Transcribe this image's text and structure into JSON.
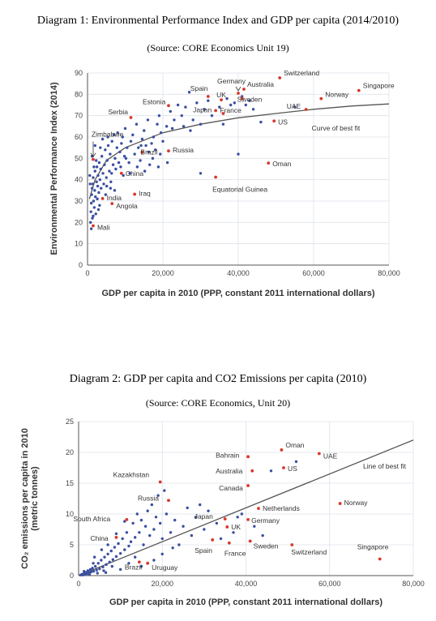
{
  "caption1": {
    "title": "Diagram 1: Environmental Performance Index and GDP per capita (2014/2010)",
    "source": "(Source: CORE Economics Unit 19)"
  },
  "caption2": {
    "title": "Diagram 2: GDP per capita and CO2 Emissions per capita (2010)",
    "source": "(Source: CORE Economics, Unit 20)"
  },
  "chart_data": [
    {
      "type": "scatter",
      "title": "Diagram 1: Environmental Performance Index and GDP per capita (2014/2010)",
      "xlabel": "GDP per capita in 2010 (PPP, constant 2011 international dollars)",
      "ylabel": "Environmental Performance Index (2014)",
      "xlim": [
        0,
        80000
      ],
      "ylim": [
        0,
        90
      ],
      "xticks": [
        0,
        20000,
        40000,
        60000,
        80000
      ],
      "xtick_labels": [
        "0",
        "20,000",
        "40,000",
        "60,000",
        "80,000"
      ],
      "yticks": [
        0,
        10,
        20,
        30,
        40,
        50,
        60,
        70,
        80,
        90
      ],
      "grid": true,
      "colors": {
        "points": "#3a4fa0",
        "highlight": "#d9372a",
        "curve": "#555555"
      },
      "fit_label": "Curve of best fit",
      "fit_curve": {
        "type": "log",
        "x": [
          500,
          2000,
          5000,
          10000,
          20000,
          30000,
          40000,
          50000,
          60000,
          70000,
          80000
        ],
        "y": [
          31,
          40,
          49,
          55,
          62,
          66,
          69,
          71,
          73,
          74.5,
          75.5
        ]
      },
      "labeled_points": [
        {
          "name": "Switzerland",
          "x": 51000,
          "y": 87.7
        },
        {
          "name": "Germany",
          "x": 40000,
          "y": 80.5
        },
        {
          "name": "Spain",
          "x": 32000,
          "y": 79
        },
        {
          "name": "Australia",
          "x": 41500,
          "y": 82.4
        },
        {
          "name": "Singapore",
          "x": 72000,
          "y": 81.8
        },
        {
          "name": "UK",
          "x": 35500,
          "y": 77.4
        },
        {
          "name": "Sweden",
          "x": 41000,
          "y": 78.1
        },
        {
          "name": "Japan",
          "x": 34000,
          "y": 72.4
        },
        {
          "name": "France",
          "x": 36000,
          "y": 71
        },
        {
          "name": "Norway",
          "x": 62000,
          "y": 78
        },
        {
          "name": "UAE",
          "x": 58000,
          "y": 72.9
        },
        {
          "name": "US",
          "x": 49500,
          "y": 67.5
        },
        {
          "name": "Estonia",
          "x": 21500,
          "y": 74.7
        },
        {
          "name": "Serbia",
          "x": 11500,
          "y": 69.1
        },
        {
          "name": "Zimbabwe",
          "x": 1500,
          "y": 49.5
        },
        {
          "name": "Brazil",
          "x": 14500,
          "y": 52.9
        },
        {
          "name": "Russia",
          "x": 21500,
          "y": 53.5
        },
        {
          "name": "China",
          "x": 9000,
          "y": 43
        },
        {
          "name": "Oman",
          "x": 48000,
          "y": 47.8
        },
        {
          "name": "India",
          "x": 4000,
          "y": 31.2
        },
        {
          "name": "Iraq",
          "x": 12500,
          "y": 33.2
        },
        {
          "name": "Angola",
          "x": 6500,
          "y": 28.8
        },
        {
          "name": "Mali",
          "x": 1500,
          "y": 18.4
        },
        {
          "name": "Equatorial Guinea",
          "x": 34000,
          "y": 41.2
        }
      ],
      "other_points": [
        [
          800,
          20
        ],
        [
          900,
          25
        ],
        [
          1000,
          29
        ],
        [
          1100,
          33
        ],
        [
          1200,
          36
        ],
        [
          1300,
          22
        ],
        [
          1400,
          38
        ],
        [
          1500,
          41
        ],
        [
          1600,
          30
        ],
        [
          1800,
          27
        ],
        [
          1900,
          35
        ],
        [
          2000,
          44
        ],
        [
          2100,
          32
        ],
        [
          2200,
          24
        ],
        [
          2400,
          39
        ],
        [
          2500,
          46
        ],
        [
          2700,
          37
        ],
        [
          2800,
          42
        ],
        [
          3000,
          34
        ],
        [
          3100,
          48
        ],
        [
          3300,
          40
        ],
        [
          3500,
          45
        ],
        [
          3600,
          36
        ],
        [
          3800,
          51
        ],
        [
          4100,
          43
        ],
        [
          4300,
          38
        ],
        [
          4500,
          47
        ],
        [
          4700,
          54
        ],
        [
          5000,
          41
        ],
        [
          5200,
          49
        ],
        [
          5500,
          56
        ],
        [
          5800,
          44
        ],
        [
          6000,
          52
        ],
        [
          6200,
          39
        ],
        [
          6500,
          58
        ],
        [
          6800,
          47
        ],
        [
          7000,
          61
        ],
        [
          7300,
          50
        ],
        [
          7500,
          45
        ],
        [
          7800,
          55
        ],
        [
          8000,
          62
        ],
        [
          8300,
          48
        ],
        [
          8600,
          53
        ],
        [
          9000,
          57
        ],
        [
          9300,
          60
        ],
        [
          9500,
          42
        ],
        [
          9800,
          51
        ],
        [
          10000,
          64
        ],
        [
          10500,
          55
        ],
        [
          11000,
          48
        ],
        [
          11500,
          58
        ],
        [
          12000,
          61
        ],
        [
          12500,
          52
        ],
        [
          13000,
          66
        ],
        [
          13500,
          55
        ],
        [
          14000,
          49
        ],
        [
          14500,
          59
        ],
        [
          15000,
          63
        ],
        [
          15500,
          56
        ],
        [
          16000,
          68
        ],
        [
          16500,
          47
        ],
        [
          17000,
          57
        ],
        [
          17500,
          60
        ],
        [
          18000,
          54
        ],
        [
          18500,
          66
        ],
        [
          19000,
          70
        ],
        [
          19500,
          62
        ],
        [
          20000,
          58
        ],
        [
          21000,
          65
        ],
        [
          22000,
          72
        ],
        [
          22500,
          64
        ],
        [
          23000,
          68
        ],
        [
          24000,
          75
        ],
        [
          25000,
          70
        ],
        [
          26000,
          74
        ],
        [
          27000,
          81
        ],
        [
          28000,
          68
        ],
        [
          29000,
          76
        ],
        [
          30000,
          66
        ],
        [
          31000,
          73
        ],
        [
          32000,
          77
        ],
        [
          33000,
          70
        ],
        [
          35000,
          74
        ],
        [
          36000,
          66
        ],
        [
          37000,
          78
        ],
        [
          38000,
          75
        ],
        [
          39000,
          76
        ],
        [
          40000,
          52
        ],
        [
          41000,
          79
        ],
        [
          42000,
          75
        ],
        [
          43000,
          77
        ],
        [
          44000,
          73
        ],
        [
          46000,
          67
        ],
        [
          55000,
          74
        ],
        [
          30000,
          43
        ],
        [
          2000,
          56
        ],
        [
          1200,
          51
        ],
        [
          600,
          42
        ],
        [
          700,
          38
        ],
        [
          1700,
          46
        ],
        [
          2300,
          49
        ],
        [
          3400,
          55
        ],
        [
          4000,
          59
        ],
        [
          5400,
          60
        ],
        [
          6400,
          43
        ],
        [
          7200,
          35
        ],
        [
          8800,
          46
        ],
        [
          10200,
          50
        ],
        [
          11200,
          43
        ],
        [
          13200,
          46
        ],
        [
          15200,
          44
        ],
        [
          17300,
          50
        ],
        [
          19300,
          52
        ],
        [
          18800,
          46
        ],
        [
          16200,
          53
        ],
        [
          14200,
          56
        ],
        [
          21200,
          48
        ],
        [
          25500,
          65
        ],
        [
          27300,
          63
        ],
        [
          2600,
          31
        ],
        [
          3200,
          28
        ],
        [
          1500,
          23
        ],
        [
          1000,
          17
        ],
        [
          2900,
          26
        ],
        [
          4800,
          33
        ],
        [
          5100,
          37
        ],
        [
          6100,
          36
        ]
      ]
    },
    {
      "type": "scatter",
      "title": "Diagram 2: GDP per capita and CO2 Emissions per capita (2010)",
      "xlabel": "GDP per capita in 2010 (PPP, constant 2011 international dollars)",
      "ylabel": "CO₂ emissions per capita in 2010 (metric tonnes)",
      "xlim": [
        0,
        80000
      ],
      "ylim": [
        0,
        25
      ],
      "xticks": [
        0,
        20000,
        40000,
        60000,
        80000
      ],
      "xtick_labels": [
        "0",
        "20,000",
        "40,000",
        "60,000",
        "80,000"
      ],
      "yticks": [
        0,
        5,
        10,
        15,
        20,
        25
      ],
      "grid": true,
      "colors": {
        "points": "#3a4fa0",
        "highlight": "#d9372a",
        "line": "#555555"
      },
      "fit_label": "Line of best fit",
      "fit_line": {
        "x": [
          0,
          80000
        ],
        "y": [
          0,
          22
        ]
      },
      "labeled_points": [
        {
          "name": "Oman",
          "x": 48500,
          "y": 20.4
        },
        {
          "name": "UAE",
          "x": 57500,
          "y": 19.8
        },
        {
          "name": "Bahrain",
          "x": 40500,
          "y": 19.3
        },
        {
          "name": "Australia",
          "x": 41500,
          "y": 17
        },
        {
          "name": "US",
          "x": 49000,
          "y": 17.5
        },
        {
          "name": "Kazakhstan",
          "x": 19500,
          "y": 15.2
        },
        {
          "name": "Canada",
          "x": 40500,
          "y": 14.6
        },
        {
          "name": "Russia",
          "x": 21500,
          "y": 12.2
        },
        {
          "name": "Netherlands",
          "x": 43000,
          "y": 10.9
        },
        {
          "name": "Norway",
          "x": 62500,
          "y": 11.7
        },
        {
          "name": "South Africa",
          "x": 11500,
          "y": 9.1
        },
        {
          "name": "Japan",
          "x": 35000,
          "y": 9.2
        },
        {
          "name": "Germany",
          "x": 40500,
          "y": 9.1
        },
        {
          "name": "UK",
          "x": 35500,
          "y": 7.9
        },
        {
          "name": "China",
          "x": 9000,
          "y": 6.2
        },
        {
          "name": "Sweden",
          "x": 41000,
          "y": 5.6
        },
        {
          "name": "Spain",
          "x": 32000,
          "y": 5.8
        },
        {
          "name": "France",
          "x": 36000,
          "y": 5.3
        },
        {
          "name": "Switzerland",
          "x": 51000,
          "y": 5.0
        },
        {
          "name": "Singapore",
          "x": 72000,
          "y": 2.7
        },
        {
          "name": "Uruguay",
          "x": 16500,
          "y": 2.0
        },
        {
          "name": "Brazil",
          "x": 14500,
          "y": 2.2
        }
      ],
      "other_points": [
        [
          500,
          0.1
        ],
        [
          800,
          0.2
        ],
        [
          1000,
          0.1
        ],
        [
          1200,
          0.3
        ],
        [
          1500,
          0.2
        ],
        [
          1800,
          0.5
        ],
        [
          2000,
          0.3
        ],
        [
          2200,
          0.8
        ],
        [
          2500,
          0.4
        ],
        [
          2800,
          1.0
        ],
        [
          3000,
          0.6
        ],
        [
          3300,
          1.2
        ],
        [
          3600,
          0.7
        ],
        [
          4000,
          1.5
        ],
        [
          4300,
          0.9
        ],
        [
          4700,
          2.0
        ],
        [
          5000,
          1.1
        ],
        [
          5400,
          2.5
        ],
        [
          5800,
          1.4
        ],
        [
          6200,
          3.0
        ],
        [
          6600,
          1.8
        ],
        [
          7000,
          3.5
        ],
        [
          7400,
          2.2
        ],
        [
          7800,
          4.0
        ],
        [
          8200,
          2.6
        ],
        [
          8600,
          4.6
        ],
        [
          9000,
          3.1
        ],
        [
          9500,
          5.2
        ],
        [
          10000,
          3.6
        ],
        [
          10500,
          6.0
        ],
        [
          11000,
          4.2
        ],
        [
          11500,
          7.0
        ],
        [
          12000,
          4.8
        ],
        [
          12500,
          5.5
        ],
        [
          13000,
          8.5
        ],
        [
          13500,
          6.2
        ],
        [
          14000,
          10.0
        ],
        [
          14500,
          7.0
        ],
        [
          15000,
          9.0
        ],
        [
          15500,
          5.0
        ],
        [
          16000,
          8.0
        ],
        [
          16500,
          10.5
        ],
        [
          17000,
          6.5
        ],
        [
          17500,
          11.5
        ],
        [
          18000,
          7.5
        ],
        [
          18500,
          9.5
        ],
        [
          19000,
          13.0
        ],
        [
          19500,
          8.5
        ],
        [
          20000,
          6.0
        ],
        [
          20500,
          13.8
        ],
        [
          21000,
          10.0
        ],
        [
          22000,
          7.0
        ],
        [
          23000,
          9.0
        ],
        [
          24000,
          5.0
        ],
        [
          25000,
          8.0
        ],
        [
          26000,
          11.0
        ],
        [
          27000,
          6.5
        ],
        [
          28000,
          9.5
        ],
        [
          29000,
          11.5
        ],
        [
          30000,
          7.5
        ],
        [
          31000,
          10.5
        ],
        [
          33000,
          8.5
        ],
        [
          34000,
          6.0
        ],
        [
          37000,
          7.0
        ],
        [
          38000,
          9.5
        ],
        [
          39000,
          10.0
        ],
        [
          42000,
          8.0
        ],
        [
          44000,
          6.5
        ],
        [
          46000,
          17.0
        ],
        [
          52000,
          18.5
        ],
        [
          3500,
          2.0
        ],
        [
          6000,
          0.8
        ],
        [
          8000,
          1.5
        ],
        [
          10000,
          1.0
        ],
        [
          12000,
          2.0
        ],
        [
          9000,
          6.8
        ],
        [
          7000,
          5.0
        ],
        [
          5500,
          4.2
        ],
        [
          11000,
          8.8
        ],
        [
          13500,
          3.0
        ],
        [
          2600,
          0.2
        ],
        [
          4500,
          0.4
        ],
        [
          1300,
          0.7
        ],
        [
          3800,
          3.0
        ],
        [
          6500,
          0.5
        ],
        [
          15000,
          1.5
        ],
        [
          20000,
          3.5
        ],
        [
          22500,
          4.5
        ],
        [
          18000,
          2.5
        ]
      ]
    }
  ]
}
